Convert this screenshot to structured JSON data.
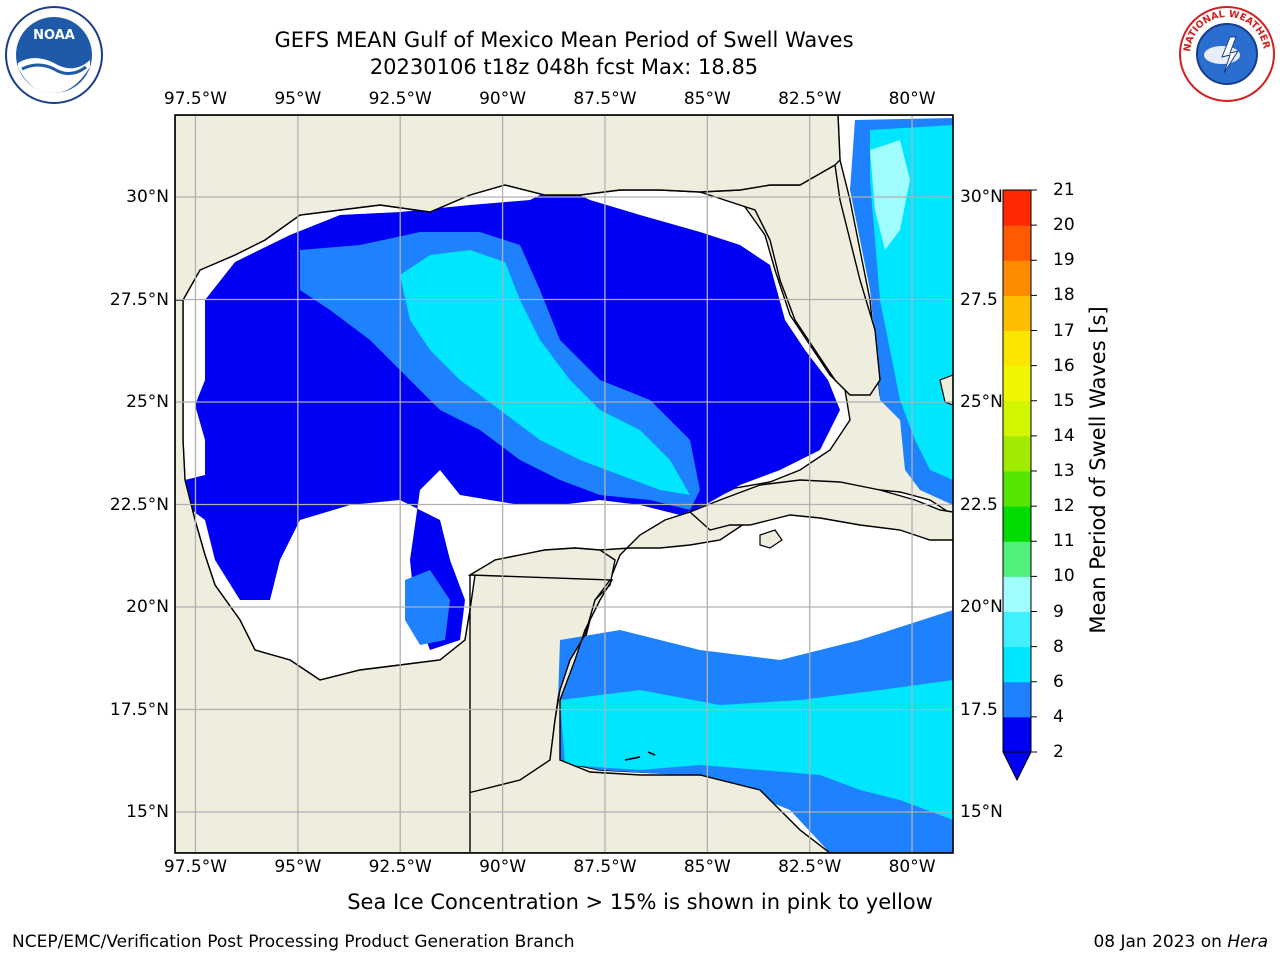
{
  "header": {
    "title": "GEFS MEAN Gulf of Mexico Mean Period of Swell Waves",
    "subtitle": "20230106 t18z 048h fcst   Max: 18.85"
  },
  "logos": {
    "left": "NOAA",
    "right": "NATIONAL WEATHER SERVICE"
  },
  "map": {
    "lon_labels": [
      "97.5°W",
      "95°W",
      "92.5°W",
      "90°W",
      "87.5°W",
      "85°W",
      "82.5°W",
      "80°W"
    ],
    "lat_labels": [
      "30°N",
      "27.5°N",
      "25°N",
      "22.5°N",
      "20°N",
      "17.5°N",
      "15°N"
    ],
    "right_lat_labels": [
      "30°N",
      "27.5",
      "25°N",
      "22.5",
      "20°N",
      "17.5",
      "15°N"
    ],
    "extent": {
      "lon_min": -98.0,
      "lon_max": -79.0,
      "lat_min": 14.0,
      "lat_max": 32.0
    },
    "colors": {
      "land": "#efedde",
      "no_data": "#ffffff",
      "grid": "#b0b0b0"
    }
  },
  "colorbar": {
    "label": "Mean Period of Swell Waves [s]",
    "ticks": [
      "2",
      "4",
      "6",
      "8",
      "9",
      "10",
      "11",
      "12",
      "13",
      "14",
      "15",
      "16",
      "17",
      "18",
      "19",
      "20",
      "21"
    ],
    "colors": [
      "#0000f5",
      "#1e82ff",
      "#00e6ff",
      "#40f0ff",
      "#a0fcff",
      "#50f07a",
      "#00dc00",
      "#55e600",
      "#a0eb00",
      "#d2f500",
      "#f0f500",
      "#fae600",
      "#ffbe00",
      "#ff8c00",
      "#ff5a00",
      "#ff2800"
    ]
  },
  "footer": {
    "caption": "Sea Ice Concentration > 15% is shown in pink to yellow",
    "credit": "NCEP/EMC/Verification Post Processing Product Generation Branch",
    "date": "08 Jan 2023 on",
    "host": "Hera"
  }
}
